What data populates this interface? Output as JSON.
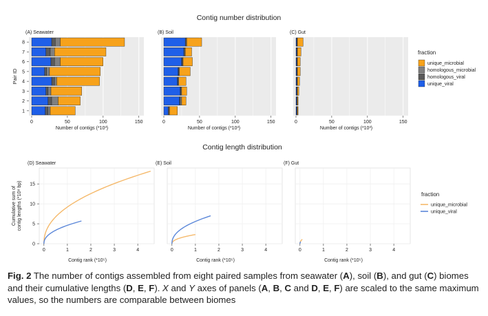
{
  "figure": {
    "section_titles": [
      "Contig number distribution",
      "Contig length distribution"
    ],
    "caption": {
      "label": "Fig. 2",
      "p1": "The number of contigs assembled from eight paired samples from seawater (",
      "A": "A",
      "p2": "), soil (",
      "B": "B",
      "p3": "), and gut (",
      "C": "C",
      "p4": ") biomes and their cumulative lengths (",
      "D": "D",
      "c1": ", ",
      "E": "E",
      "c2": ", ",
      "F": "F",
      "p5": "). ",
      "X": "X",
      "p6": " and ",
      "Y": "Y",
      "p7": " axes of panels (",
      "A2": "A",
      "c3": ", ",
      "B2": "B",
      "c4": ", ",
      "C2": "C",
      "p8": " and ",
      "D2": "D",
      "c5": ", ",
      "E2": "E",
      "c6": ", ",
      "F2": "F",
      "p9": ") are scaled to the same maximum values, so the numbers are comparable between biomes"
    }
  },
  "colors": {
    "unique_microbial": "#F7A21B",
    "homologous_microbial": "#7F7F7F",
    "homologous_viral": "#5A5A5A",
    "unique_viral": "#1F5FE8",
    "panel_bg": "#EBEBEB",
    "grid": "#FFFFFF",
    "line_microbial": "#F5B96B",
    "line_viral": "#5B87D9"
  },
  "legends": {
    "bar": {
      "title": "fraction",
      "entries": [
        {
          "key": "unique_microbial",
          "label": "unique_microbial"
        },
        {
          "key": "homologous_microbial",
          "label": "homologous_microbial"
        },
        {
          "key": "homologous_viral",
          "label": "homologous_viral"
        },
        {
          "key": "unique_viral",
          "label": "unique_viral"
        }
      ]
    },
    "line": {
      "title": "fraction",
      "entries": [
        {
          "key": "line_microbial",
          "label": "unique_microbial"
        },
        {
          "key": "line_viral",
          "label": "unique_viral"
        }
      ]
    }
  },
  "chart_data": [
    {
      "type": "bar",
      "orientation": "horizontal",
      "stacked": true,
      "title": "(A) Seawater",
      "xlabel": "Number of contigs (*10³)",
      "ylabel": "Pair ID",
      "xlim": [
        0,
        150
      ],
      "xticks": [
        0,
        50,
        100,
        150
      ],
      "categories": [
        "1",
        "2",
        "3",
        "4",
        "5",
        "6",
        "7",
        "8"
      ],
      "series": [
        {
          "name": "unique_viral",
          "values": [
            19,
            23,
            20,
            28,
            18,
            27,
            20,
            28
          ]
        },
        {
          "name": "homologous_viral",
          "values": [
            4,
            5,
            3,
            4,
            3,
            5,
            6,
            5
          ]
        },
        {
          "name": "homologous_microbial",
          "values": [
            3,
            9,
            4,
            3,
            4,
            8,
            6,
            7
          ]
        },
        {
          "name": "unique_microbial",
          "values": [
            35,
            31,
            43,
            60,
            71,
            60,
            72,
            90
          ]
        }
      ]
    },
    {
      "type": "bar",
      "orientation": "horizontal",
      "stacked": true,
      "title": "(B) Soil",
      "xlabel": "Number of contigs (*10³)",
      "xlim": [
        0,
        150
      ],
      "xticks": [
        0,
        50,
        100,
        150
      ],
      "categories": [
        "1",
        "2",
        "3",
        "4",
        "5",
        "6",
        "7",
        "8"
      ],
      "series": [
        {
          "name": "unique_viral",
          "values": [
            6,
            22,
            23,
            19,
            20,
            25,
            28,
            30
          ]
        },
        {
          "name": "homologous_viral",
          "values": [
            1,
            1,
            1,
            1,
            1,
            1,
            1,
            1
          ]
        },
        {
          "name": "homologous_microbial",
          "values": [
            1,
            2,
            1,
            1,
            1,
            1,
            1,
            1
          ]
        },
        {
          "name": "unique_microbial",
          "values": [
            11,
            6,
            7,
            10,
            15,
            13,
            9,
            21
          ]
        }
      ]
    },
    {
      "type": "bar",
      "orientation": "horizontal",
      "stacked": true,
      "title": "(C) Gut",
      "xlabel": "Number of contigs (*10³)",
      "xlim": [
        0,
        150
      ],
      "xticks": [
        0,
        50,
        100,
        150
      ],
      "categories": [
        "1",
        "2",
        "3",
        "4",
        "5",
        "6",
        "7",
        "8"
      ],
      "series": [
        {
          "name": "unique_viral",
          "values": [
            1,
            1,
            1,
            1,
            1,
            1,
            1,
            1
          ]
        },
        {
          "name": "homologous_viral",
          "values": [
            0.5,
            0.5,
            0.5,
            0.5,
            0.5,
            0.5,
            0.5,
            0.5
          ]
        },
        {
          "name": "homologous_microbial",
          "values": [
            0.5,
            0.5,
            0.5,
            0.5,
            0.5,
            0.5,
            0.5,
            0.5
          ]
        },
        {
          "name": "unique_microbial",
          "values": [
            1,
            1,
            2,
            3,
            4,
            4,
            5,
            8
          ]
        }
      ]
    },
    {
      "type": "line",
      "title": "(D) Seawater",
      "xlabel": "Contig rank (*10⁵)",
      "ylabel": "Cumulative sum of contig lengths (*10⁸ bp)",
      "xlim": [
        -0.2,
        4.7
      ],
      "ylim": [
        0,
        19
      ],
      "xticks": [
        0,
        1,
        2,
        3,
        4
      ],
      "yticks": [
        0,
        5,
        10,
        15
      ],
      "series": [
        {
          "name": "unique_microbial",
          "max_x": 4.55,
          "max_y": 18.2
        },
        {
          "name": "unique_viral",
          "max_x": 1.6,
          "max_y": 5.7
        }
      ]
    },
    {
      "type": "line",
      "title": "(E) Soil",
      "xlabel": "Contig rank (*10⁵)",
      "xlim": [
        -0.2,
        4.7
      ],
      "ylim": [
        0,
        19
      ],
      "xticks": [
        0,
        1,
        2,
        3,
        4
      ],
      "series": [
        {
          "name": "unique_microbial",
          "max_x": 1.0,
          "max_y": 2.3
        },
        {
          "name": "unique_viral",
          "max_x": 1.65,
          "max_y": 7.0
        }
      ]
    },
    {
      "type": "line",
      "title": "(F) Gut",
      "xlabel": "Contig rank (*10⁵)",
      "xlim": [
        -0.2,
        4.7
      ],
      "ylim": [
        0,
        19
      ],
      "xticks": [
        0,
        1,
        2,
        3,
        4
      ],
      "series": [
        {
          "name": "unique_microbial",
          "max_x": 0.1,
          "max_y": 1.1
        },
        {
          "name": "unique_viral",
          "max_x": 0.03,
          "max_y": 0.5
        }
      ]
    }
  ]
}
